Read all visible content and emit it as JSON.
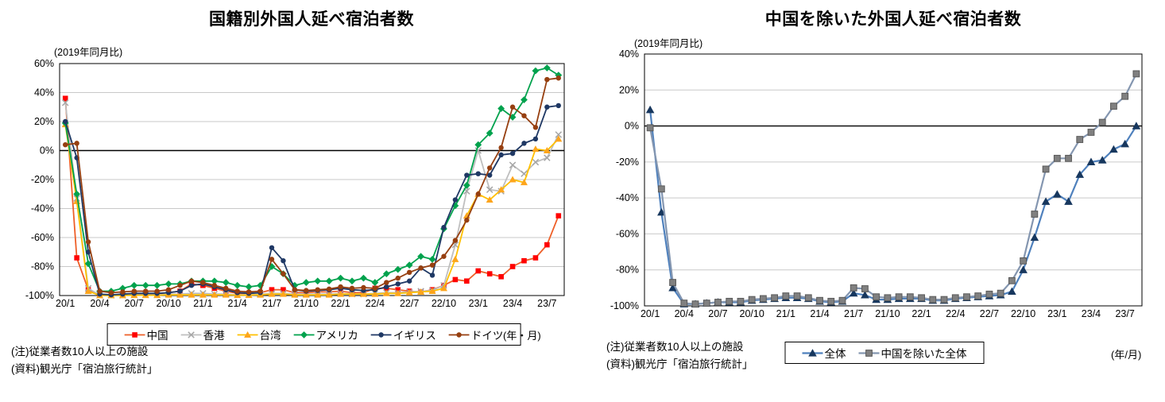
{
  "charts": [
    {
      "title": "国籍別外国人延べ宿泊者数",
      "y_axis_note": "(2019年同月比)",
      "x_axis_unit": "(年・月)",
      "notes": [
        "(注)従業者数10人以上の施設",
        "(資料)観光庁「宿泊旅行統計」"
      ],
      "chart_data": {
        "type": "line",
        "x": [
          "20/1",
          "20/2",
          "20/3",
          "20/4",
          "20/5",
          "20/6",
          "20/7",
          "20/8",
          "20/9",
          "20/10",
          "20/11",
          "20/12",
          "21/1",
          "21/2",
          "21/3",
          "21/4",
          "21/5",
          "21/6",
          "21/7",
          "21/8",
          "21/9",
          "21/10",
          "21/11",
          "21/12",
          "22/1",
          "22/2",
          "22/3",
          "22/4",
          "22/5",
          "22/6",
          "22/7",
          "22/8",
          "22/9",
          "22/10",
          "22/11",
          "22/12",
          "23/1",
          "23/2",
          "23/3",
          "23/4",
          "23/5",
          "23/6",
          "23/7",
          "23/8"
        ],
        "x_tick_labels": [
          "20/1",
          "20/4",
          "20/7",
          "20/10",
          "21/1",
          "21/4",
          "21/7",
          "21/10",
          "22/1",
          "22/4",
          "22/7",
          "22/10",
          "23/1",
          "23/4",
          "23/7"
        ],
        "x_tick_every": 3,
        "ylim": [
          -100,
          60
        ],
        "yticks": [
          60,
          40,
          20,
          0,
          -20,
          -40,
          -60,
          -80,
          -100
        ],
        "ytick_suffix": "%",
        "grid": true,
        "legend_position": "bottom",
        "series": [
          {
            "name": "中国",
            "marker": "square",
            "line_color": "#EE5F28",
            "marker_color": "#FF0000",
            "values": [
              36,
              -74,
              -96,
              -99.5,
              -99.5,
              -99.5,
              -99,
              -99,
              -99,
              -98,
              -97,
              -92,
              -93,
              -95,
              -97,
              -98.5,
              -98.5,
              -98,
              -96,
              -96,
              -98,
              -98,
              -97.5,
              -97.5,
              -97,
              -98,
              -98,
              -95,
              -95,
              -96,
              -97,
              -97.5,
              -96,
              -93,
              -89,
              -90,
              -83,
              -85,
              -87,
              -80,
              -76,
              -74,
              -65,
              -45
            ]
          },
          {
            "name": "香港",
            "marker": "x",
            "line_color": "#BFBFBF",
            "marker_color": "#A6A6A6",
            "values": [
              33,
              -33,
              -95,
              -99.8,
              -99.8,
              -99.8,
              -99.5,
              -99.5,
              -99.5,
              -99,
              -99,
              -98.5,
              -98.5,
              -99,
              -99,
              -99.5,
              -99.5,
              -99,
              -98.5,
              -98.5,
              -99,
              -99,
              -99,
              -99,
              -98.5,
              -99,
              -99,
              -98.5,
              -98,
              -98,
              -97.5,
              -97,
              -96.5,
              -93,
              -65,
              -28,
              0,
              -27,
              -28,
              -10,
              -16,
              -8,
              -5,
              11
            ]
          },
          {
            "name": "台湾",
            "marker": "triangle",
            "line_color": "#FFC000",
            "marker_color": "#FDA51C",
            "values": [
              18,
              -35,
              -97,
              -99.9,
              -99.9,
              -99.9,
              -99.8,
              -99.8,
              -99.8,
              -99.5,
              -99.5,
              -99.5,
              -99.5,
              -99.5,
              -99.5,
              -99.7,
              -99.7,
              -99.5,
              -99,
              -99,
              -99.5,
              -99.5,
              -99.5,
              -99.5,
              -99,
              -99,
              -99,
              -99,
              -98.5,
              -98.5,
              -98,
              -97.5,
              -97,
              -95,
              -75,
              -45,
              -30,
              -34,
              -27,
              -20,
              -22,
              1,
              0,
              8
            ]
          },
          {
            "name": "アメリカ",
            "marker": "diamond",
            "line_color": "#00A24D",
            "marker_color": "#00A24D",
            "values": [
              19,
              -30,
              -78,
              -97,
              -97,
              -95,
              -93,
              -93,
              -93,
              -92,
              -92,
              -90,
              -90,
              -90,
              -91,
              -93,
              -94,
              -93,
              -80,
              -85,
              -93,
              -91,
              -90,
              -90,
              -88,
              -90,
              -88,
              -91,
              -85,
              -82,
              -79,
              -73,
              -75,
              -54,
              -38,
              -24,
              4,
              12,
              29,
              23,
              35,
              55,
              57,
              52
            ]
          },
          {
            "name": "イギリス",
            "marker": "circle",
            "line_color": "#1F3864",
            "marker_color": "#1F3864",
            "values": [
              20,
              -5,
              -70,
              -99,
              -99.5,
              -99,
              -98.5,
              -98.5,
              -98.5,
              -98,
              -97,
              -93,
              -92,
              -94,
              -96,
              -98,
              -98.5,
              -98,
              -67,
              -76,
              -96,
              -97,
              -96.5,
              -96,
              -95,
              -96,
              -96.5,
              -96,
              -94,
              -92,
              -90,
              -81,
              -86,
              -53,
              -34,
              -17,
              -16,
              -17,
              -3,
              -2,
              5,
              8,
              30,
              31
            ]
          },
          {
            "name": "ドイツ",
            "marker": "circle",
            "line_color": "#963F10",
            "marker_color": "#963F10",
            "values": [
              4,
              5,
              -63,
              -97,
              -98,
              -97.5,
              -97,
              -97,
              -97,
              -96,
              -93,
              -90,
              -91,
              -93,
              -95,
              -97,
              -97.5,
              -97,
              -75,
              -85,
              -96,
              -96.5,
              -96,
              -95.5,
              -94,
              -95,
              -94.5,
              -95,
              -91,
              -88,
              -84,
              -81,
              -79,
              -73,
              -62,
              -48,
              -30,
              -12,
              2,
              30,
              24,
              16,
              49,
              50
            ]
          }
        ]
      }
    },
    {
      "title": "中国を除いた外国人延べ宿泊者数",
      "y_axis_note": "(2019年同月比)",
      "x_axis_unit": "(年/月)",
      "notes": [
        "(注)従業者数10人以上の施設",
        "(資料)観光庁「宿泊旅行統計」"
      ],
      "chart_data": {
        "type": "line",
        "x": [
          "20/1",
          "20/2",
          "20/3",
          "20/4",
          "20/5",
          "20/6",
          "20/7",
          "20/8",
          "20/9",
          "20/10",
          "20/11",
          "20/12",
          "21/1",
          "21/2",
          "21/3",
          "21/4",
          "21/5",
          "21/6",
          "21/7",
          "21/8",
          "21/9",
          "21/10",
          "21/11",
          "21/12",
          "22/1",
          "22/2",
          "22/3",
          "22/4",
          "22/5",
          "22/6",
          "22/7",
          "22/8",
          "22/9",
          "22/10",
          "22/11",
          "22/12",
          "23/1",
          "23/2",
          "23/3",
          "23/4",
          "23/5",
          "23/6",
          "23/7",
          "23/8"
        ],
        "x_tick_labels": [
          "20/1",
          "20/4",
          "20/7",
          "20/10",
          "21/1",
          "21/4",
          "21/7",
          "21/10",
          "22/1",
          "22/4",
          "22/7",
          "22/10",
          "23/1",
          "23/4",
          "23/7"
        ],
        "x_tick_every": 3,
        "ylim": [
          -100,
          40
        ],
        "yticks": [
          40,
          20,
          0,
          -20,
          -40,
          -60,
          -80,
          -100
        ],
        "ytick_suffix": "%",
        "grid": true,
        "legend_position": "bottom",
        "series": [
          {
            "name": "全体",
            "marker": "triangle",
            "line_color": "#4F81BD",
            "marker_color": "#17375E",
            "values": [
              9,
              -48,
              -90,
              -99,
              -99,
              -98.5,
              -98,
              -98,
              -98,
              -97,
              -96.5,
              -96,
              -95.5,
              -95.5,
              -96,
              -97.5,
              -98,
              -97.5,
              -93,
              -94,
              -96.5,
              -96.5,
              -96,
              -96,
              -96,
              -97,
              -97,
              -96,
              -95.5,
              -95,
              -94.5,
              -94,
              -92,
              -80,
              -62,
              -42,
              -38,
              -42,
              -27,
              -20,
              -19,
              -13,
              -10,
              0
            ]
          },
          {
            "name": "中国を除いた全体",
            "marker": "square",
            "line_color": "#8496B0",
            "marker_color": "#808080",
            "marker_stroke": "#595959",
            "values": [
              -1,
              -35,
              -87,
              -98.5,
              -99,
              -98.5,
              -98,
              -97.5,
              -97.5,
              -96.5,
              -96,
              -95.5,
              -94.5,
              -94.5,
              -95.5,
              -97,
              -97.5,
              -97,
              -90,
              -90.5,
              -95,
              -95.5,
              -95,
              -95,
              -95.5,
              -96.5,
              -96.5,
              -95.5,
              -95,
              -94.5,
              -93.5,
              -93,
              -86,
              -75,
              -49,
              -24,
              -18,
              -18,
              -7.5,
              -3.5,
              2,
              11,
              16.5,
              29
            ]
          }
        ]
      }
    }
  ]
}
